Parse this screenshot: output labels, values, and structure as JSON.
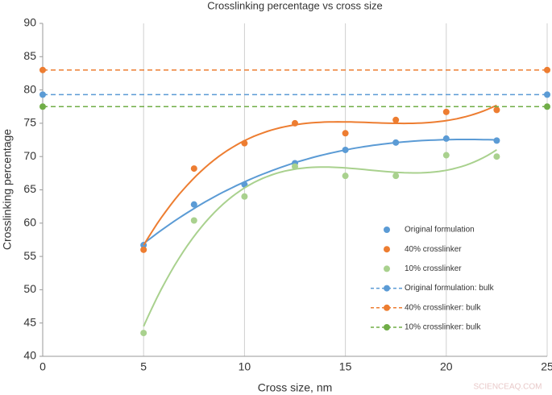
{
  "chart_data": {
    "type": "scatter",
    "title": "Crosslinking percentage vs cross size",
    "x_label": "Cross size, nm",
    "y_label": "Crosslinking percentage",
    "xlim": [
      0,
      25
    ],
    "xticks": [
      0,
      5,
      10,
      15,
      20,
      25
    ],
    "ylim": [
      40,
      90
    ],
    "yticks": [
      40,
      45,
      50,
      55,
      60,
      65,
      70,
      75,
      80,
      85,
      90
    ],
    "grid": "x",
    "trendline_order": 3,
    "series": [
      {
        "name": "Original formulation",
        "color": "#5b9bd5",
        "style": "points",
        "x": [
          5,
          7.5,
          10,
          12.5,
          15,
          17.5,
          20,
          22.5
        ],
        "values": [
          56.7,
          62.8,
          65.8,
          69,
          71,
          72.1,
          72.7,
          72.4
        ]
      },
      {
        "name": "40% crosslinker",
        "color": "#ed7d31",
        "style": "points",
        "x": [
          5,
          7.5,
          10,
          12.5,
          15,
          17.5,
          20,
          22.5
        ],
        "values": [
          56,
          68.2,
          72,
          75,
          73.5,
          75.5,
          76.7,
          77
        ]
      },
      {
        "name": "10% crosslinker",
        "color": "#a9d18e",
        "style": "points",
        "x": [
          5,
          7.5,
          10,
          12.5,
          15,
          17.5,
          20,
          22.5
        ],
        "values": [
          43.5,
          60.4,
          64,
          68.5,
          67.1,
          67.1,
          70.2,
          70
        ]
      },
      {
        "name": "Original formulation: bulk",
        "color": "#5b9bd5",
        "style": "dashed",
        "x": [
          0,
          25
        ],
        "values": [
          79.3,
          79.3
        ]
      },
      {
        "name": "40% crosslinker: bulk",
        "color": "#ed7d31",
        "style": "dashed",
        "x": [
          0,
          25
        ],
        "values": [
          83,
          83
        ]
      },
      {
        "name": "10% crosslinker: bulk",
        "color": "#70ad47",
        "style": "dashed",
        "x": [
          0,
          25
        ],
        "values": [
          77.5,
          77.5
        ]
      }
    ],
    "watermark": "SCIENCEAQ.COM"
  }
}
